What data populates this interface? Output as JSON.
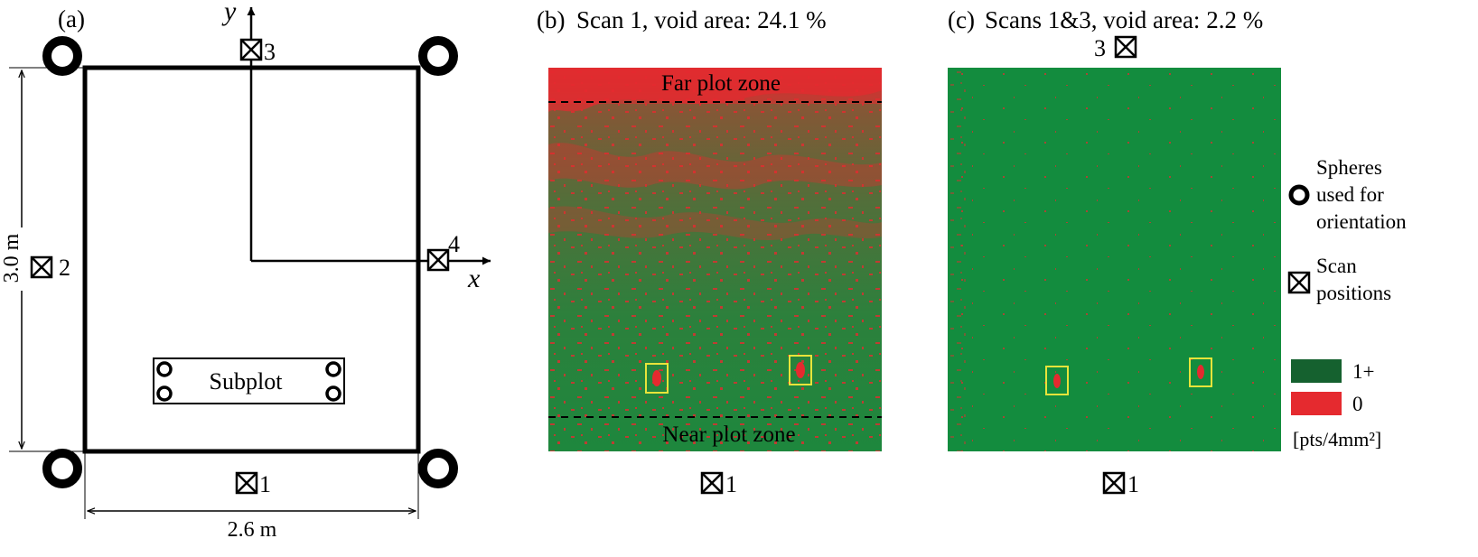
{
  "panel_a": {
    "label": "(a)",
    "axis_y": "y",
    "axis_x": "x",
    "height_dim": "3.0 m",
    "width_dim": "2.6 m",
    "subplot_label": "Subplot",
    "scan_positions": [
      "1",
      "2",
      "3",
      "4"
    ]
  },
  "panel_b": {
    "label": "(b)",
    "title": "Scan 1, void area: 24.1 %",
    "void_area_percent": 24.1,
    "far_zone": "Far plot zone",
    "near_zone": "Near plot zone",
    "scan_marker": "1"
  },
  "panel_c": {
    "label": "(c)",
    "title": "Scans 1&3, void area: 2.2 %",
    "void_area_percent": 2.2,
    "scan_marker_top": "3",
    "scan_marker_bottom": "1"
  },
  "legend": {
    "spheres": [
      "Spheres",
      "used for",
      "orientation"
    ],
    "scans": [
      "Scan",
      "positions"
    ],
    "density_high": "1+",
    "density_zero": "0",
    "units": "[pts/4mm²]"
  },
  "colors": {
    "dense_green": "#138c3e",
    "legend_green": "#15612f",
    "void_red": "#e52a2f",
    "highlight_yellow": "#e8e43a"
  }
}
